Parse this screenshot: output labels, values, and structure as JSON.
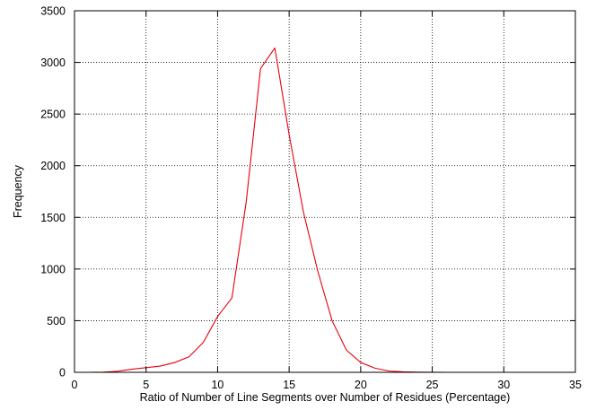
{
  "chart_data": {
    "type": "line",
    "title": "",
    "xlabel": "Ratio of Number of Line Segments over Number of Residues (Percentage)",
    "ylabel": "Frequency",
    "xlim": [
      0,
      35
    ],
    "ylim": [
      0,
      3500
    ],
    "grid": true,
    "xticks": [
      0,
      5,
      10,
      15,
      20,
      25,
      30,
      35
    ],
    "yticks": [
      0,
      500,
      1000,
      1500,
      2000,
      2500,
      3000,
      3500
    ],
    "series": [
      {
        "color": "#e8000b",
        "x": [
          1,
          2,
          3,
          4,
          5,
          6,
          7,
          8,
          9,
          10,
          11,
          12,
          13,
          14,
          15,
          16,
          17,
          18,
          19,
          20,
          21,
          22,
          23,
          24,
          25,
          26,
          27,
          28,
          29,
          30,
          31,
          32,
          33,
          34,
          35
        ],
        "y": [
          0,
          2,
          10,
          30,
          45,
          60,
          95,
          150,
          290,
          540,
          720,
          1650,
          2940,
          3140,
          2300,
          1550,
          980,
          500,
          215,
          95,
          40,
          12,
          5,
          2,
          1,
          0,
          0,
          0,
          0,
          0,
          0,
          0,
          0,
          0,
          0
        ]
      }
    ]
  }
}
